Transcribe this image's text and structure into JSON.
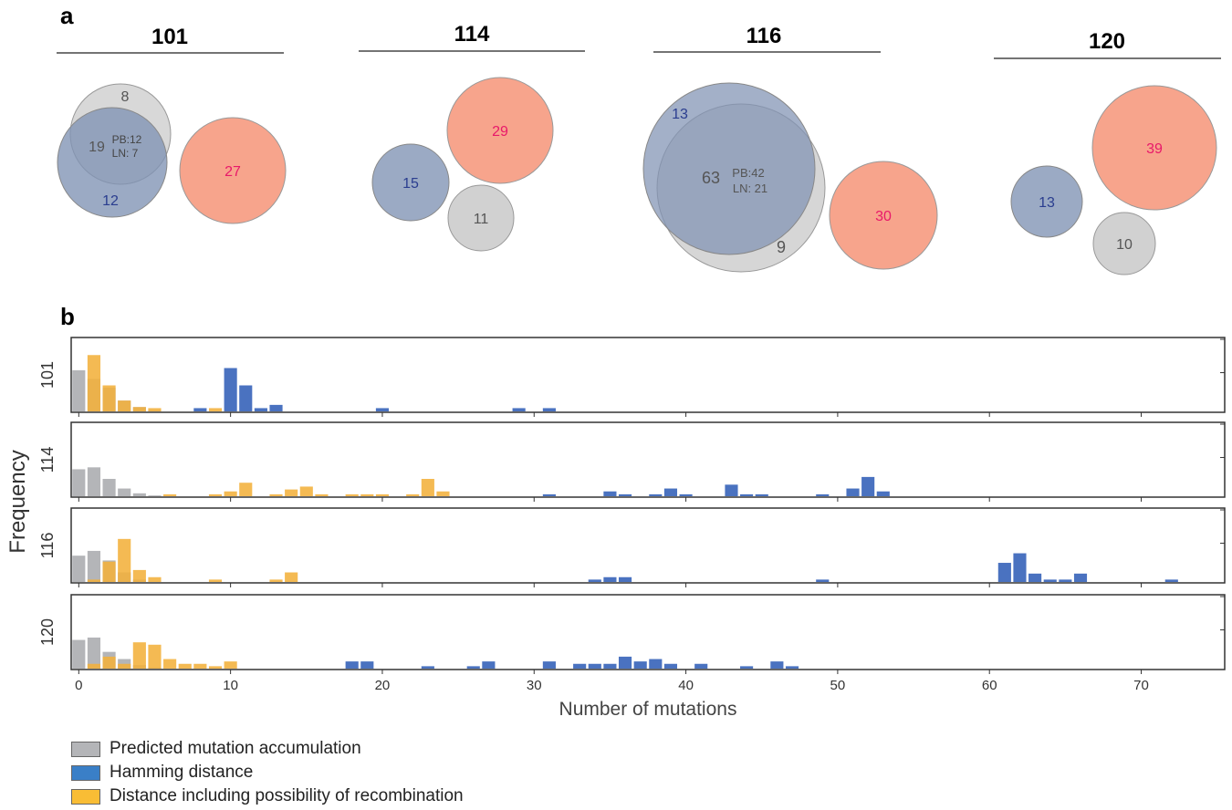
{
  "panel_a_label": "a",
  "panel_b_label": "b",
  "colors": {
    "predicted": "#b4b5b8",
    "hamming": "#4a72c0",
    "recombination": "#f3b13b",
    "circle_gray": "#d1d1d1",
    "circle_blue": "#7f92b3",
    "circle_salmon": "#f7a48c",
    "text_gray": "#555555",
    "text_blue": "#2a3d8f",
    "text_pink": "#e8196a"
  },
  "venn": [
    {
      "title": "101",
      "gray_count": "8",
      "overlap_count": "19",
      "overlap_pb": "PB:12",
      "overlap_ln": "LN: 7",
      "blue_count": "12",
      "salmon_count": "27"
    },
    {
      "title": "114",
      "gray_count": "11",
      "blue_count": "15",
      "salmon_count": "29"
    },
    {
      "title": "116",
      "gray_count": "9",
      "overlap_count": "63",
      "overlap_pb": "PB:42",
      "overlap_ln": "LN: 21",
      "blue_count": "13",
      "salmon_count": "30"
    },
    {
      "title": "120",
      "gray_count": "10",
      "blue_count": "13",
      "salmon_count": "39"
    }
  ],
  "chart_data": {
    "type": "bar",
    "ylabel": "Frequency",
    "xlabel": "Number of mutations",
    "xlim": [
      -0.5,
      75.5
    ],
    "xticks": [
      0,
      10,
      20,
      30,
      40,
      50,
      60,
      70
    ],
    "bar_width": 0.85,
    "panels": [
      {
        "name": "101",
        "ymax": 0.32,
        "series": [
          {
            "name": "Predicted mutation accumulation",
            "x": [
              0,
              1,
              2,
              3,
              4,
              5
            ],
            "values": [
              0.19,
              0.15,
              0.11,
              0.05,
              0.02,
              0.005
            ]
          },
          {
            "name": "Distance including possibility of recombination",
            "x": [
              1,
              2,
              3,
              4,
              5,
              9
            ],
            "values": [
              0.26,
              0.12,
              0.05,
              0.02,
              0.015,
              0.015
            ]
          },
          {
            "name": "Hamming distance",
            "x": [
              8,
              10,
              11,
              12,
              13,
              20,
              29,
              31
            ],
            "values": [
              0.015,
              0.2,
              0.12,
              0.015,
              0.03,
              0.015,
              0.015,
              0.015
            ]
          }
        ]
      },
      {
        "name": "114",
        "ymax": 0.36,
        "series": [
          {
            "name": "Predicted mutation accumulation",
            "x": [
              0,
              1,
              2,
              3,
              4,
              5
            ],
            "values": [
              0.14,
              0.15,
              0.09,
              0.04,
              0.015,
              0.004
            ]
          },
          {
            "name": "Distance including possibility of recombination",
            "x": [
              6,
              9,
              10,
              11,
              13,
              14,
              15,
              16,
              18,
              19,
              20,
              22,
              23,
              24
            ],
            "values": [
              0.01,
              0.01,
              0.025,
              0.07,
              0.01,
              0.035,
              0.05,
              0.01,
              0.01,
              0.01,
              0.01,
              0.01,
              0.09,
              0.025
            ]
          },
          {
            "name": "Hamming distance",
            "x": [
              31,
              35,
              36,
              38,
              39,
              40,
              43,
              44,
              45,
              49,
              51,
              52,
              53
            ],
            "values": [
              0.01,
              0.025,
              0.01,
              0.01,
              0.04,
              0.01,
              0.06,
              0.01,
              0.01,
              0.01,
              0.04,
              0.1,
              0.025
            ]
          }
        ]
      },
      {
        "name": "116",
        "ymax": 0.29,
        "series": [
          {
            "name": "Predicted mutation accumulation",
            "x": [
              0,
              1,
              2,
              3,
              4
            ],
            "values": [
              0.11,
              0.13,
              0.09,
              0.04,
              0.01
            ]
          },
          {
            "name": "Distance including possibility of recombination",
            "x": [
              1,
              2,
              3,
              4,
              5,
              9,
              13,
              14
            ],
            "values": [
              0.01,
              0.085,
              0.18,
              0.05,
              0.02,
              0.01,
              0.01,
              0.04
            ]
          },
          {
            "name": "Hamming distance",
            "x": [
              34,
              35,
              36,
              49,
              61,
              62,
              63,
              64,
              65,
              66,
              72
            ],
            "values": [
              0.01,
              0.02,
              0.02,
              0.01,
              0.08,
              0.12,
              0.035,
              0.01,
              0.01,
              0.035,
              0.01
            ]
          }
        ]
      },
      {
        "name": "120",
        "ymax": 0.29,
        "series": [
          {
            "name": "Predicted mutation accumulation",
            "x": [
              0,
              1,
              2,
              3,
              4,
              5
            ],
            "values": [
              0.12,
              0.13,
              0.07,
              0.04,
              0.015,
              0.005
            ]
          },
          {
            "name": "Distance including possibility of recombination",
            "x": [
              1,
              2,
              3,
              4,
              5,
              6,
              7,
              8,
              9,
              10
            ],
            "values": [
              0.02,
              0.05,
              0.02,
              0.11,
              0.1,
              0.04,
              0.02,
              0.02,
              0.01,
              0.03
            ]
          },
          {
            "name": "Hamming distance",
            "x": [
              18,
              19,
              23,
              26,
              27,
              31,
              33,
              34,
              35,
              36,
              37,
              38,
              39,
              41,
              44,
              46,
              47
            ],
            "values": [
              0.03,
              0.03,
              0.01,
              0.01,
              0.03,
              0.03,
              0.02,
              0.02,
              0.02,
              0.05,
              0.03,
              0.04,
              0.02,
              0.02,
              0.01,
              0.03,
              0.01
            ]
          }
        ]
      }
    ]
  },
  "legend": [
    {
      "label": "Predicted mutation accumulation",
      "color": "#b4b5b8"
    },
    {
      "label": "Hamming distance",
      "color": "#3a7fc7"
    },
    {
      "label": "Distance including possibility of recombination",
      "color": "#f9bd35"
    }
  ]
}
